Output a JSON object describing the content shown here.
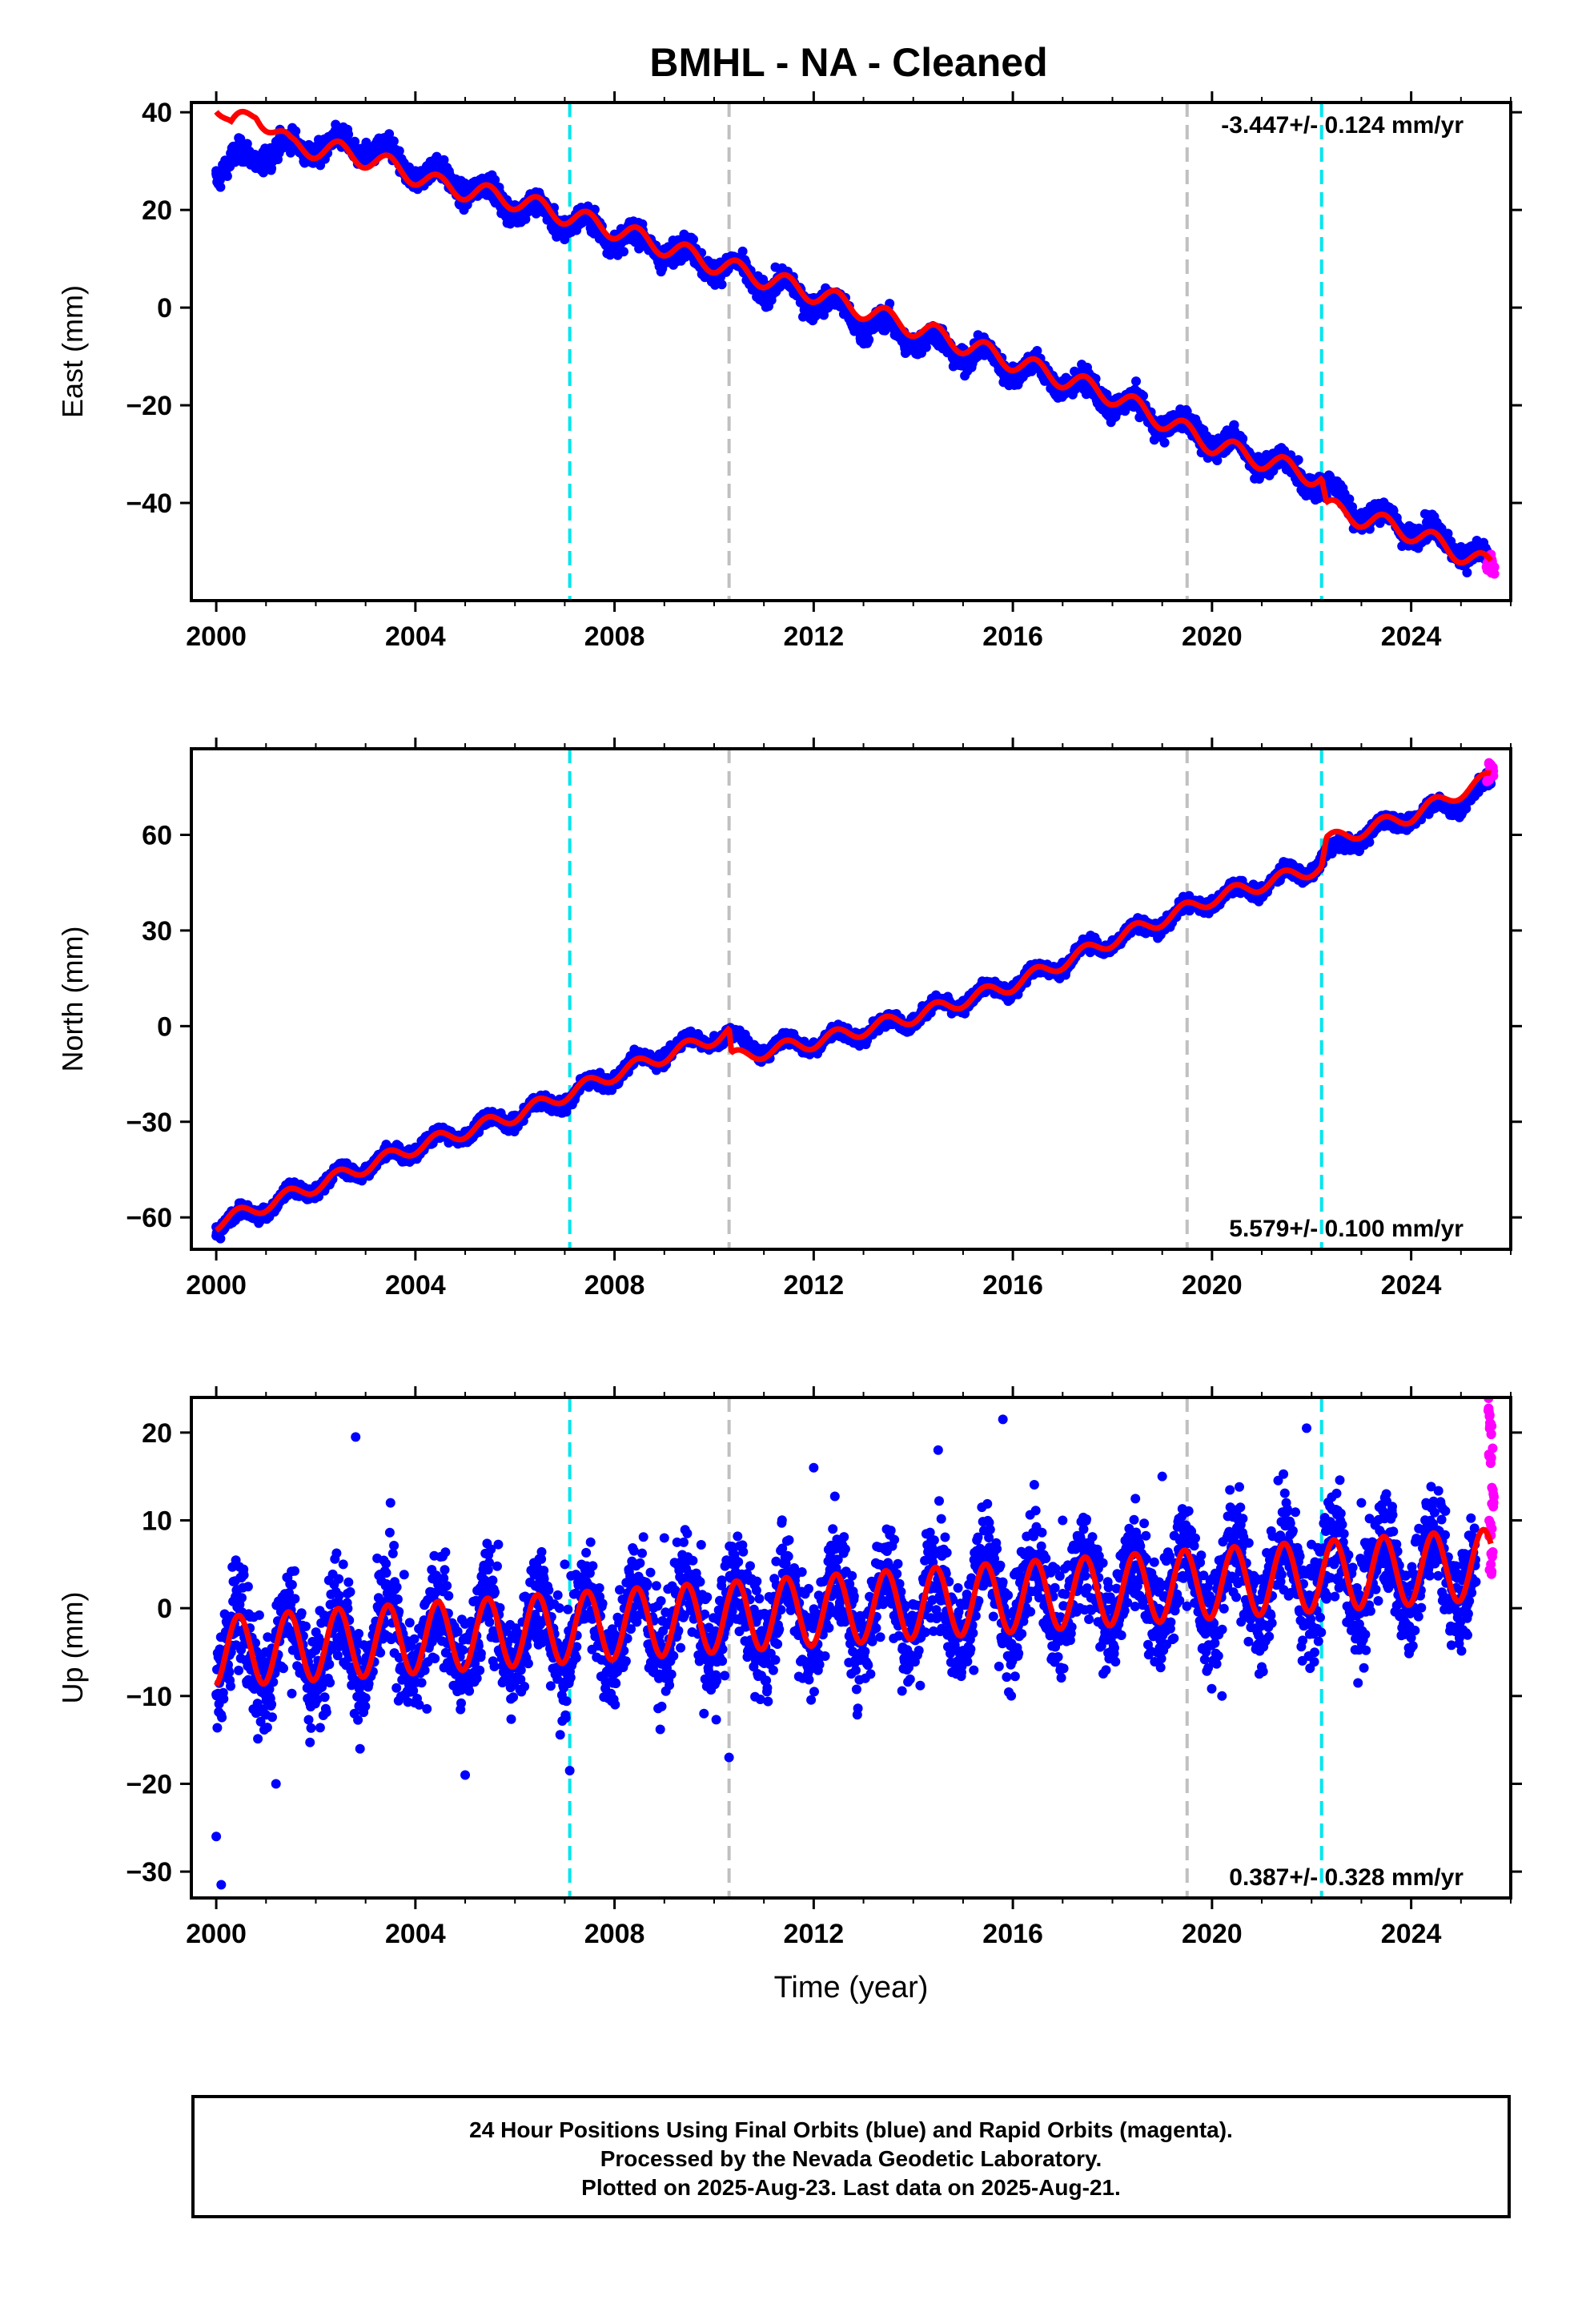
{
  "chart_data": [
    {
      "type": "scatter",
      "panel": "east",
      "title": "BMHL  - NA - Cleaned",
      "xlabel": "",
      "ylabel": "East (mm)",
      "rate_label": "-3.447+/- 0.124 mm/yr",
      "rate_mm_per_yr": -3.447,
      "rate_sigma": 0.124,
      "xlim": [
        1999.5,
        2026.0
      ],
      "ylim": [
        -60,
        42
      ],
      "xticks": [
        2000,
        2004,
        2008,
        2012,
        2016,
        2020,
        2024
      ],
      "yticks": [
        -40,
        -20,
        0,
        20,
        40
      ],
      "grid": false,
      "series": [
        {
          "name": "Final Orbits (blue)",
          "color": "#0000ff",
          "x": [
            2000.0,
            2001.0,
            2002.0,
            2003.0,
            2004.0,
            2005.0,
            2006.0,
            2007.0,
            2008.0,
            2009.0,
            2010.0,
            2011.0,
            2012.0,
            2013.0,
            2014.0,
            2015.0,
            2016.0,
            2017.0,
            2018.0,
            2019.0,
            2020.0,
            2021.0,
            2022.0,
            2023.0,
            2024.0,
            2025.0,
            2025.6
          ],
          "y": [
            28,
            32,
            33,
            33,
            28,
            25,
            21,
            18,
            15,
            12,
            9,
            5,
            2,
            -3,
            -6,
            -9,
            -12,
            -15,
            -19,
            -23,
            -27,
            -31,
            -35,
            -42,
            -45,
            -49,
            -54
          ]
        },
        {
          "name": "Rapid Orbits (magenta)",
          "color": "#ff00ff",
          "x": [
            2025.55,
            2025.6,
            2025.65
          ],
          "y": [
            -53,
            -52,
            -54
          ]
        },
        {
          "name": "Model fit",
          "color": "#ff0000",
          "x": [
            2000.0,
            2000.3,
            2000.8,
            2001.5,
            2002.5,
            2003.5,
            2004.5,
            2006.0,
            2008.0,
            2010.0,
            2012.0,
            2014.0,
            2016.0,
            2018.0,
            2020.0,
            2022.2,
            2022.3,
            2024.0,
            2025.6
          ],
          "y": [
            42,
            37,
            40,
            33,
            32,
            29,
            25,
            22,
            16,
            9,
            3,
            -4,
            -11,
            -18,
            -28,
            -35,
            -41,
            -46,
            -53
          ]
        }
      ],
      "reference_lines": [
        {
          "x": 2007.1,
          "color": "#00e5ee"
        },
        {
          "x": 2010.3,
          "color": "#c0c0c0"
        },
        {
          "x": 2019.5,
          "color": "#c0c0c0"
        },
        {
          "x": 2022.2,
          "color": "#00e5ee"
        }
      ]
    },
    {
      "type": "scatter",
      "panel": "north",
      "xlabel": "",
      "ylabel": "North (mm)",
      "rate_label": "5.579+/- 0.100 mm/yr",
      "rate_mm_per_yr": 5.579,
      "rate_sigma": 0.1,
      "xlim": [
        1999.5,
        2026.0
      ],
      "ylim": [
        -70,
        87
      ],
      "xticks": [
        2000,
        2004,
        2008,
        2012,
        2016,
        2020,
        2024
      ],
      "yticks": [
        -60,
        -30,
        0,
        30,
        60
      ],
      "grid": false,
      "series": [
        {
          "name": "Final Orbits (blue)",
          "color": "#0000ff",
          "x": [
            2000.0,
            2001.0,
            2002.0,
            2003.0,
            2004.0,
            2005.0,
            2006.0,
            2007.0,
            2008.0,
            2009.0,
            2010.0,
            2011.0,
            2012.0,
            2013.0,
            2014.0,
            2015.0,
            2016.0,
            2017.0,
            2018.0,
            2019.0,
            2020.0,
            2021.0,
            2022.0,
            2023.0,
            2024.0,
            2025.0,
            2025.6
          ],
          "y": [
            -63,
            -57,
            -50,
            -44,
            -38,
            -33,
            -28,
            -23,
            -15,
            -8,
            -3,
            -7,
            -5,
            -2,
            3,
            8,
            13,
            20,
            27,
            33,
            40,
            44,
            50,
            60,
            66,
            70,
            76
          ]
        },
        {
          "name": "Rapid Orbits (magenta)",
          "color": "#ff00ff",
          "x": [
            2025.55,
            2025.6,
            2025.65
          ],
          "y": [
            78,
            82,
            80
          ]
        },
        {
          "name": "Model fit",
          "color": "#ff0000",
          "x": [
            2000.0,
            2002.0,
            2004.0,
            2006.0,
            2008.0,
            2010.3,
            2010.35,
            2012.0,
            2014.0,
            2016.0,
            2018.0,
            2020.0,
            2022.2,
            2022.3,
            2024.0,
            2025.6
          ],
          "y": [
            -62,
            -50,
            -38,
            -28,
            -15,
            -2,
            -10,
            -5,
            3,
            13,
            27,
            40,
            50,
            58,
            66,
            78
          ]
        }
      ],
      "reference_lines": [
        {
          "x": 2007.1,
          "color": "#00e5ee"
        },
        {
          "x": 2010.3,
          "color": "#c0c0c0"
        },
        {
          "x": 2019.5,
          "color": "#c0c0c0"
        },
        {
          "x": 2022.2,
          "color": "#00e5ee"
        }
      ]
    },
    {
      "type": "scatter",
      "panel": "up",
      "xlabel": "Time (year)",
      "ylabel": "Up (mm)",
      "rate_label": "0.387+/- 0.328 mm/yr",
      "rate_mm_per_yr": 0.387,
      "rate_sigma": 0.328,
      "xlim": [
        1999.5,
        2026.0
      ],
      "ylim": [
        -33,
        24
      ],
      "xticks": [
        2000,
        2004,
        2008,
        2012,
        2016,
        2020,
        2024
      ],
      "yticks": [
        -30,
        -20,
        -10,
        0,
        10,
        20
      ],
      "grid": false,
      "series": [
        {
          "name": "Final Orbits (blue)",
          "color": "#0000ff",
          "x": [
            2000.0,
            2000.1,
            2000.3,
            2001.2,
            2002.8,
            2003.5,
            2005.0,
            2007.0,
            2007.1,
            2009.0,
            2010.3,
            2012.0,
            2014.5,
            2015.8,
            2017.0,
            2019.0,
            2020.2,
            2021.9,
            2023.0,
            2024.3,
            2025.3
          ],
          "y": [
            -26,
            -31.5,
            -5,
            -20,
            19.5,
            12,
            -19,
            5,
            -18.5,
            8,
            -17,
            16,
            18,
            21.5,
            10,
            15,
            -10,
            20.5,
            12,
            12,
            3
          ]
        },
        {
          "name": "Rapid Orbits (magenta)",
          "color": "#ff00ff",
          "x": [
            2025.55,
            2025.6,
            2025.6,
            2025.65,
            2025.6,
            2025.6
          ],
          "y": [
            22.5,
            21,
            17,
            13,
            9,
            5
          ]
        },
        {
          "name": "Model fit",
          "color": "#ff0000",
          "x": [
            2000.0,
            2025.6
          ],
          "y": [
            -5,
            5
          ]
        }
      ],
      "reference_lines": [
        {
          "x": 2007.1,
          "color": "#00e5ee"
        },
        {
          "x": 2010.3,
          "color": "#c0c0c0"
        },
        {
          "x": 2019.5,
          "color": "#c0c0c0"
        },
        {
          "x": 2022.2,
          "color": "#00e5ee"
        }
      ]
    }
  ],
  "footer": {
    "line1": "24 Hour Positions Using Final Orbits (blue) and Rapid Orbits (magenta).",
    "line2": "Processed by the Nevada Geodetic Laboratory.",
    "line3": "Plotted on 2025-Aug-23. Last data on 2025-Aug-21."
  }
}
